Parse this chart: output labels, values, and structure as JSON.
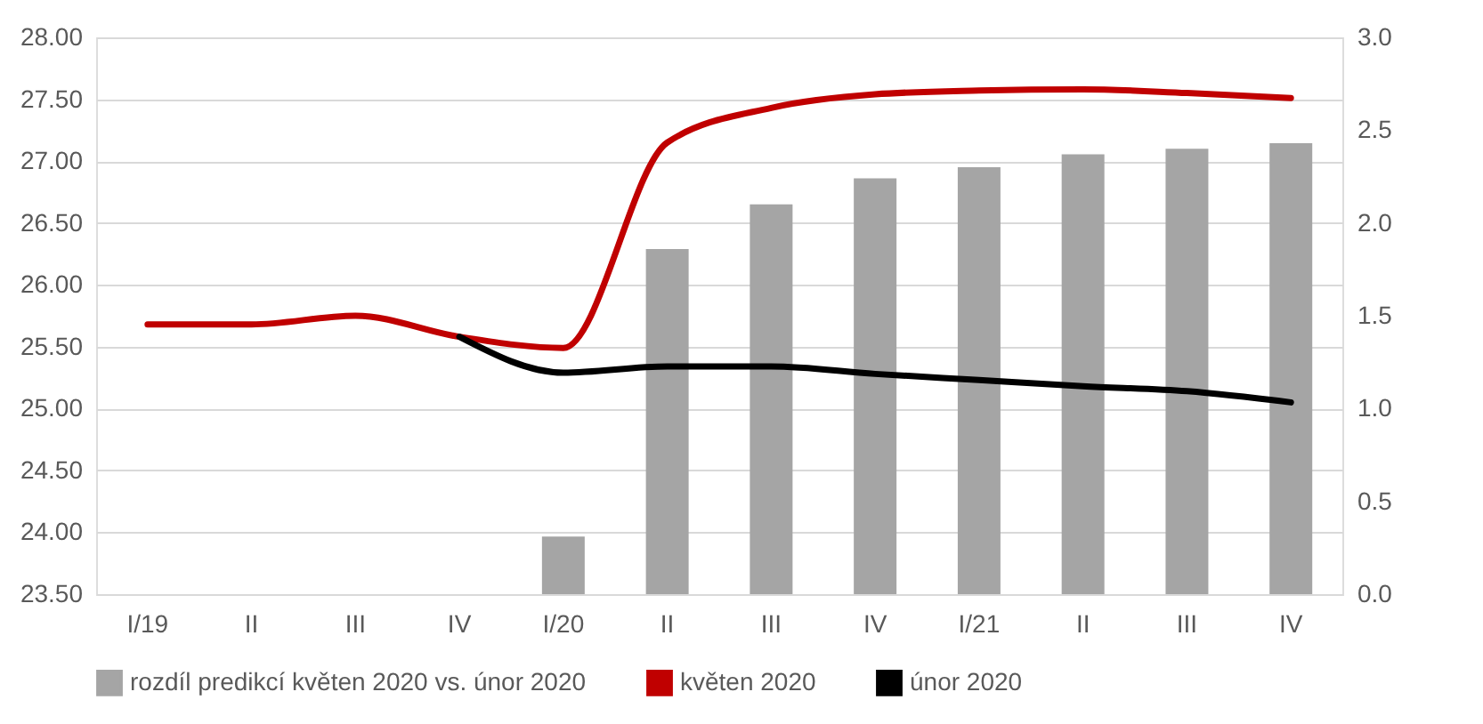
{
  "chart_data": {
    "type": "line",
    "categories": [
      "I/19",
      "II",
      "III",
      "IV",
      "I/20",
      "II",
      "III",
      "IV",
      "I/21",
      "II",
      "III",
      "IV"
    ],
    "series": [
      {
        "name": "rozdíl predikcí květen 2020 vs. únor 2020",
        "type": "bar",
        "axis": "y2",
        "color": "#a5a5a5",
        "values": [
          null,
          null,
          null,
          null,
          0.31,
          1.86,
          2.1,
          2.24,
          2.3,
          2.37,
          2.4,
          2.43
        ]
      },
      {
        "name": "květen 2020",
        "color": "#c00000",
        "values": [
          25.68,
          25.68,
          25.75,
          25.58,
          25.49,
          27.15,
          27.43,
          27.54,
          27.57,
          27.58,
          27.55,
          27.51
        ]
      },
      {
        "name": "únor 2020",
        "color": "#000000",
        "values": [
          null,
          null,
          null,
          25.58,
          25.29,
          25.34,
          25.34,
          25.28,
          25.23,
          25.18,
          25.14,
          25.05
        ]
      }
    ],
    "ylim": [
      23.5,
      28.0
    ],
    "yticks": [
      {
        "value": 23.5,
        "label": "23.50"
      },
      {
        "value": 24.0,
        "label": "24.00"
      },
      {
        "value": 24.5,
        "label": "24.50"
      },
      {
        "value": 25.0,
        "label": "25.00"
      },
      {
        "value": 25.5,
        "label": "25.50"
      },
      {
        "value": 26.0,
        "label": "26.00"
      },
      {
        "value": 26.5,
        "label": "26.50"
      },
      {
        "value": 27.0,
        "label": "27.00"
      },
      {
        "value": 27.5,
        "label": "27.50"
      },
      {
        "value": 28.0,
        "label": "28.00"
      }
    ],
    "y2lim": [
      0.0,
      3.0
    ],
    "y2ticks": [
      {
        "value": 0,
        "label": "0.0"
      },
      {
        "value": 0.5,
        "label": "0.5"
      },
      {
        "value": 1,
        "label": "1.0"
      },
      {
        "value": 1.5,
        "label": "1.5"
      },
      {
        "value": 2,
        "label": "2.0"
      },
      {
        "value": 2.5,
        "label": "2.5"
      },
      {
        "value": 3,
        "label": "3.0"
      }
    ],
    "grid": "y",
    "legend": "bottom",
    "line_style": "solid",
    "marker": "none"
  }
}
